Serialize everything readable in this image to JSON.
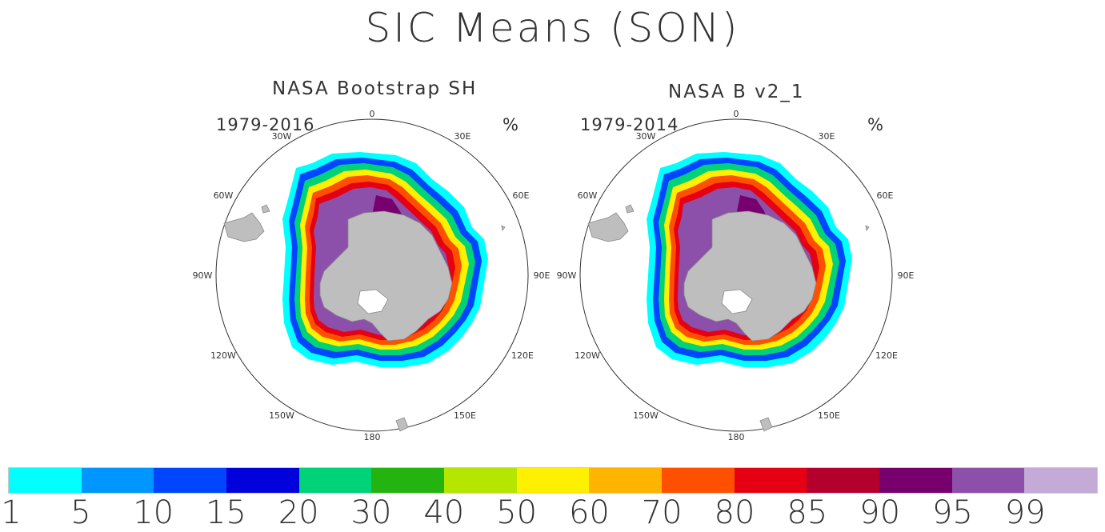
{
  "title": "SIC Means (SON)",
  "panels": [
    {
      "title": "NASA Bootstrap SH",
      "period": "1979-2016",
      "unit": "%"
    },
    {
      "title": "NASA B v2_1",
      "period": "1979-2014",
      "unit": "%"
    }
  ],
  "lon_labels": [
    "0",
    "30E",
    "60E",
    "90E",
    "120E",
    "150E",
    "180",
    "150W",
    "120W",
    "90W",
    "60W",
    "30W"
  ],
  "colorbar": {
    "labels": [
      "1",
      "5",
      "10",
      "15",
      "20",
      "30",
      "40",
      "50",
      "60",
      "70",
      "80",
      "85",
      "90",
      "95",
      "99"
    ],
    "colors": [
      "#00ffff",
      "#0096ff",
      "#0046ff",
      "#0000dc",
      "#00d278",
      "#23b40f",
      "#b4e600",
      "#ffef00",
      "#ffb400",
      "#ff5000",
      "#e60014",
      "#b4002d",
      "#78006e",
      "#8c50aa",
      "#c3aad7"
    ]
  },
  "colors": {
    "land": "#bebebe",
    "ice_edge": "#00ffff",
    "pack": "#8c50aa"
  }
}
